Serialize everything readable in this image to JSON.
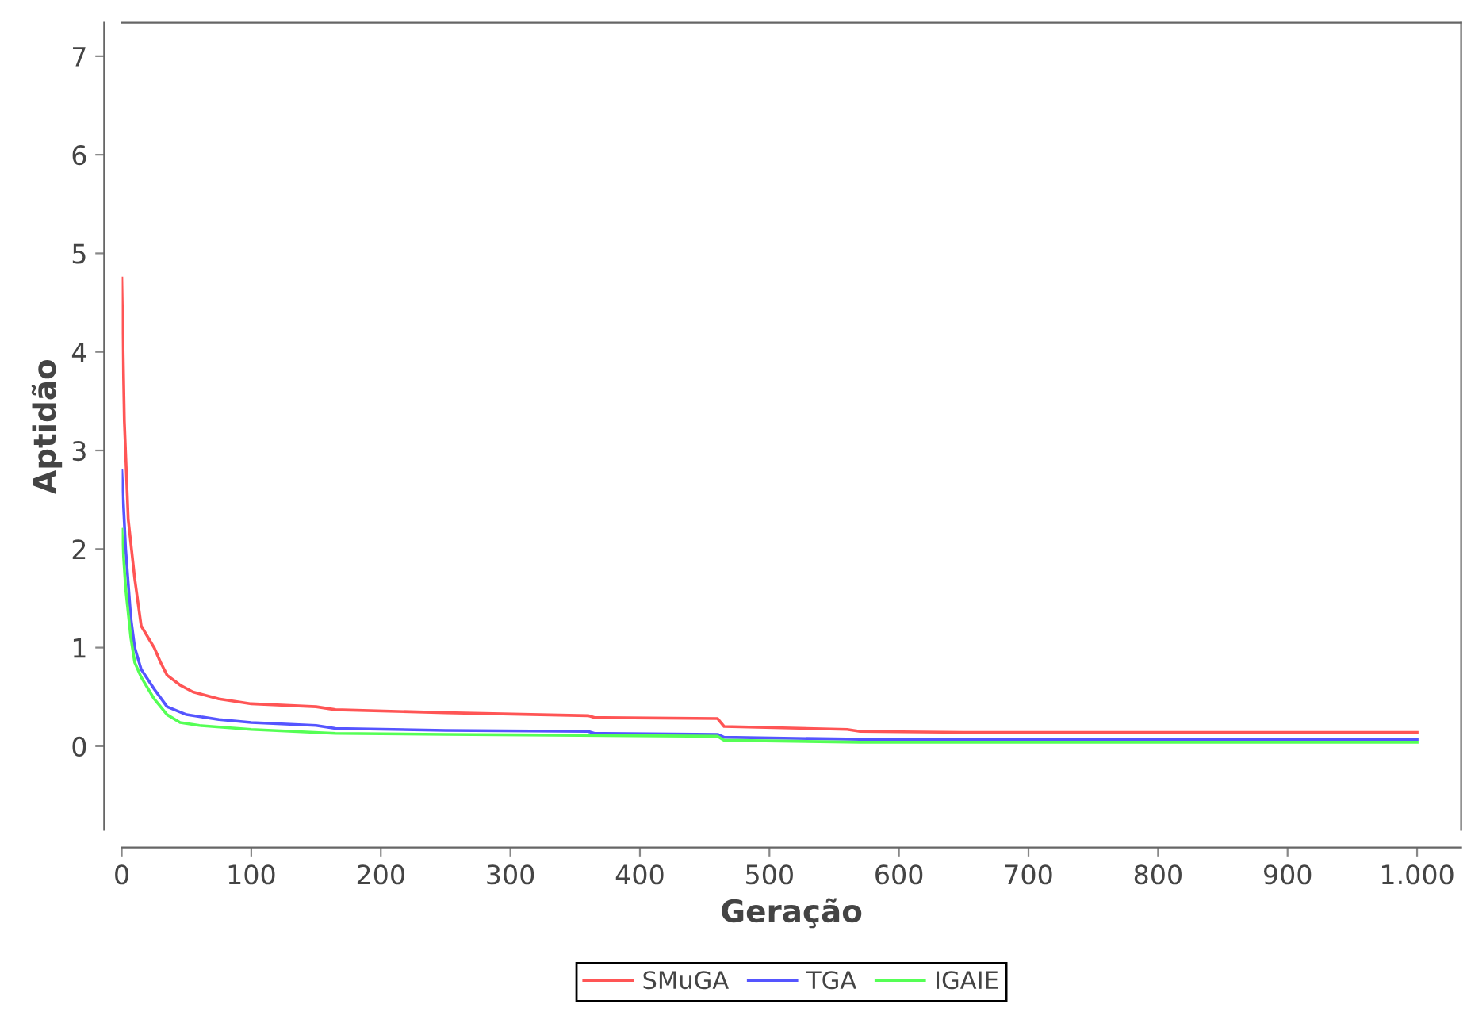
{
  "chart_data": {
    "type": "line",
    "xlabel": "Geração",
    "ylabel": "Aptidão",
    "xlim": [
      0,
      1034
    ],
    "ylim": [
      -0.85,
      7.34
    ],
    "xticks": [
      0,
      100,
      200,
      300,
      400,
      500,
      600,
      700,
      800,
      900,
      {
        "value": 1000,
        "label": "1.000"
      }
    ],
    "yticks": [
      0,
      1,
      2,
      3,
      4,
      5,
      6,
      7
    ],
    "grid": false,
    "legend": "bottom",
    "marker": "none",
    "line_style": "solid",
    "series": [
      {
        "name": "SMuGA",
        "color": "#ff5555",
        "x": [
          0,
          2,
          5,
          10,
          15,
          25,
          30,
          35,
          45,
          55,
          75,
          100,
          150,
          165,
          250,
          360,
          365,
          460,
          465,
          560,
          570,
          650,
          1000
        ],
        "values": [
          4.75,
          3.3,
          2.3,
          1.7,
          1.22,
          1.0,
          0.85,
          0.72,
          0.62,
          0.55,
          0.48,
          0.43,
          0.4,
          0.37,
          0.34,
          0.31,
          0.29,
          0.28,
          0.2,
          0.17,
          0.15,
          0.14,
          0.14
        ]
      },
      {
        "name": "TGA",
        "color": "#5555ff",
        "x": [
          0,
          3,
          7,
          10,
          15,
          25,
          35,
          50,
          75,
          100,
          150,
          165,
          250,
          360,
          365,
          460,
          465,
          570,
          1000
        ],
        "values": [
          2.8,
          2.0,
          1.3,
          1.0,
          0.78,
          0.58,
          0.4,
          0.32,
          0.27,
          0.24,
          0.21,
          0.18,
          0.16,
          0.15,
          0.13,
          0.12,
          0.09,
          0.07,
          0.07
        ]
      },
      {
        "name": "IGAIE",
        "color": "#55ff55",
        "x": [
          0,
          3,
          7,
          10,
          15,
          25,
          35,
          45,
          60,
          100,
          165,
          250,
          460,
          465,
          570,
          1000
        ],
        "values": [
          2.2,
          1.6,
          1.1,
          0.85,
          0.7,
          0.48,
          0.32,
          0.24,
          0.21,
          0.17,
          0.13,
          0.12,
          0.1,
          0.06,
          0.04,
          0.04
        ]
      }
    ]
  }
}
